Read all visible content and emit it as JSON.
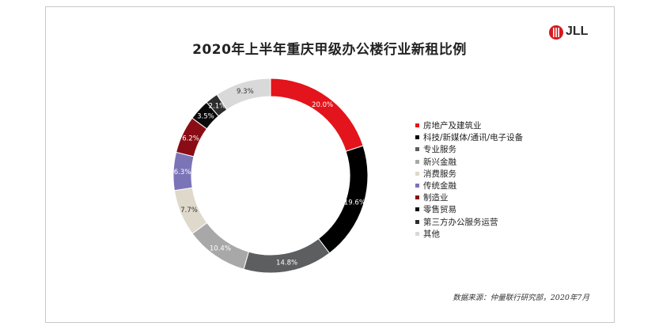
{
  "title": "2020年上半年重庆甲级办公楼行业新租比例",
  "logo": {
    "text": "JLL",
    "color": "#d71920"
  },
  "source": "数据来源：仲量联行研究部，2020年7月",
  "chart_data": {
    "type": "pie",
    "donut": true,
    "legend_position": "right",
    "series": [
      {
        "name": "房地产及建筑业",
        "value": 20.0,
        "label": "20.0%",
        "color": "#e3141b",
        "text_color": "#ffffff"
      },
      {
        "name": "科技/新媒体/通讯/电子设备",
        "value": 19.6,
        "label": "19.6%",
        "color": "#000000",
        "text_color": "#ffffff"
      },
      {
        "name": "专业服务",
        "value": 14.8,
        "label": "14.8%",
        "color": "#5c5e60",
        "text_color": "#ffffff"
      },
      {
        "name": "新兴金融",
        "value": 10.4,
        "label": "10.4%",
        "color": "#a8a8a8",
        "text_color": "#ffffff"
      },
      {
        "name": "消费服务",
        "value": 7.7,
        "label": "7.7%",
        "color": "#ded9cb",
        "text_color": "#333333"
      },
      {
        "name": "传统金融",
        "value": 6.3,
        "label": "6.3%",
        "color": "#7b74b7",
        "text_color": "#ffffff"
      },
      {
        "name": "制造业",
        "value": 6.2,
        "label": "6.2%",
        "color": "#8a0d16",
        "text_color": "#ffffff"
      },
      {
        "name": "零售贸易",
        "value": 3.5,
        "label": "3.5%",
        "color": "#0a0a0a",
        "text_color": "#ffffff"
      },
      {
        "name": "第三方办公服务运营",
        "value": 2.1,
        "label": "2.1%",
        "color": "#2d2d2d",
        "text_color": "#ffffff"
      },
      {
        "name": "其他",
        "value": 9.3,
        "label": "9.3%",
        "color": "#d9d9d9",
        "text_color": "#333333"
      }
    ]
  }
}
